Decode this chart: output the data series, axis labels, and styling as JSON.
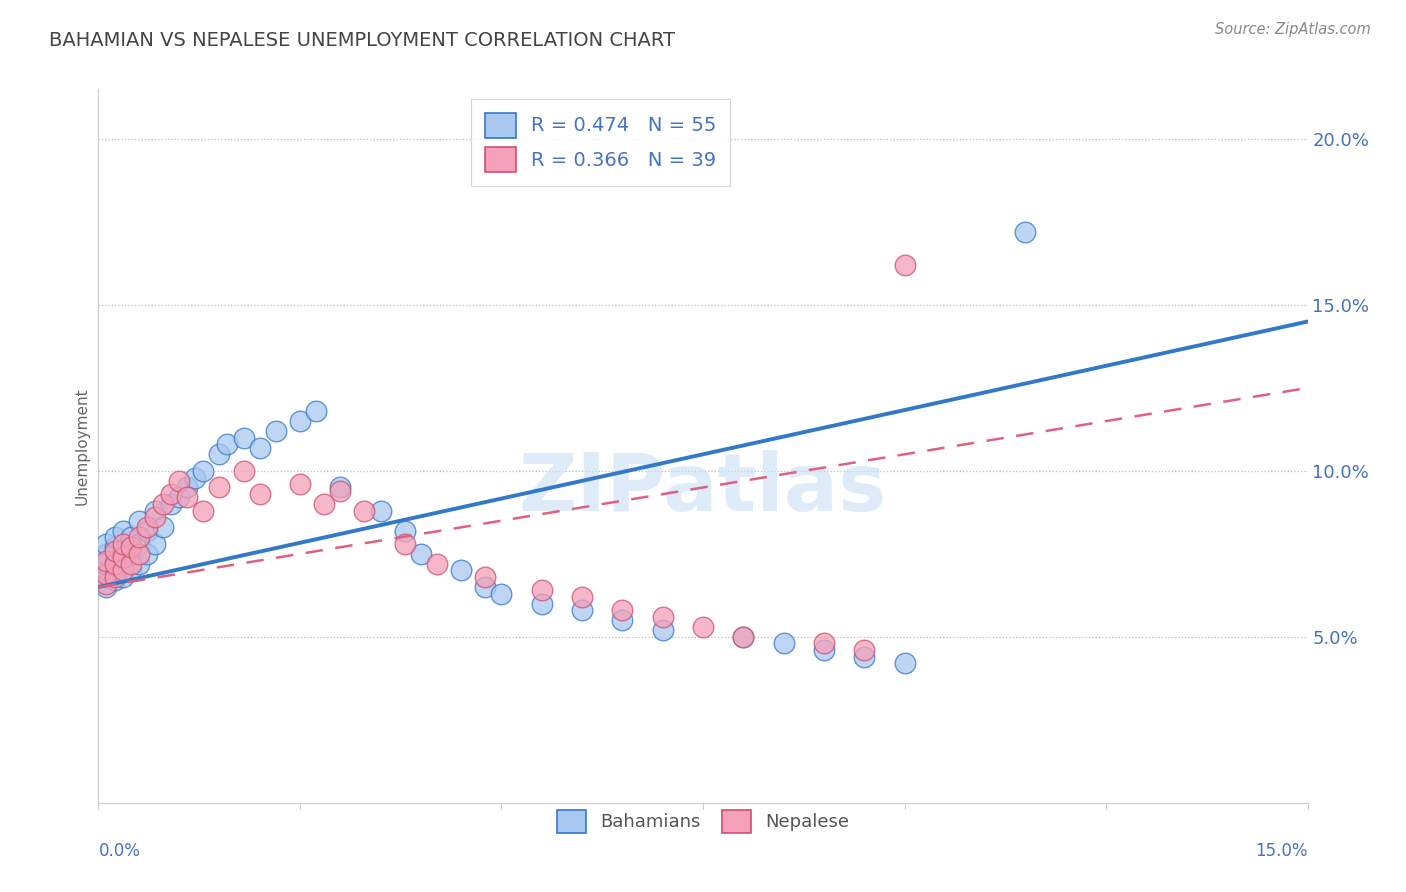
{
  "title": "BAHAMIAN VS NEPALESE UNEMPLOYMENT CORRELATION CHART",
  "source": "Source: ZipAtlas.com",
  "ylabel": "Unemployment",
  "r_bahamian": 0.474,
  "n_bahamian": 55,
  "r_nepalese": 0.366,
  "n_nepalese": 39,
  "bahamian_color": "#a8c8f0",
  "nepalese_color": "#f4a0b8",
  "line_bahamian_color": "#3478c8",
  "line_nepalese_color": "#e06080",
  "xlim": [
    0.0,
    0.15
  ],
  "ylim": [
    0.0,
    0.215
  ],
  "yticks": [
    0.05,
    0.1,
    0.15,
    0.2
  ],
  "ytick_labels": [
    "5.0%",
    "10.0%",
    "15.0%",
    "20.0%"
  ],
  "bahamian_x": [
    0.001,
    0.001,
    0.001,
    0.001,
    0.001,
    0.001,
    0.002,
    0.002,
    0.002,
    0.002,
    0.002,
    0.003,
    0.003,
    0.003,
    0.003,
    0.004,
    0.004,
    0.004,
    0.005,
    0.005,
    0.005,
    0.006,
    0.006,
    0.007,
    0.007,
    0.008,
    0.009,
    0.01,
    0.011,
    0.012,
    0.013,
    0.015,
    0.016,
    0.018,
    0.02,
    0.022,
    0.025,
    0.027,
    0.03,
    0.035,
    0.038,
    0.04,
    0.045,
    0.048,
    0.05,
    0.055,
    0.06,
    0.065,
    0.07,
    0.08,
    0.085,
    0.09,
    0.095,
    0.1,
    0.115
  ],
  "bahamian_y": [
    0.065,
    0.068,
    0.07,
    0.072,
    0.075,
    0.078,
    0.067,
    0.07,
    0.073,
    0.077,
    0.08,
    0.068,
    0.072,
    0.076,
    0.082,
    0.07,
    0.075,
    0.08,
    0.072,
    0.078,
    0.085,
    0.075,
    0.082,
    0.078,
    0.088,
    0.083,
    0.09,
    0.092,
    0.095,
    0.098,
    0.1,
    0.105,
    0.108,
    0.11,
    0.107,
    0.112,
    0.115,
    0.118,
    0.095,
    0.088,
    0.082,
    0.075,
    0.07,
    0.065,
    0.063,
    0.06,
    0.058,
    0.055,
    0.052,
    0.05,
    0.048,
    0.046,
    0.044,
    0.042,
    0.172
  ],
  "nepalese_x": [
    0.001,
    0.001,
    0.001,
    0.002,
    0.002,
    0.002,
    0.003,
    0.003,
    0.003,
    0.004,
    0.004,
    0.005,
    0.005,
    0.006,
    0.007,
    0.008,
    0.009,
    0.01,
    0.011,
    0.013,
    0.015,
    0.018,
    0.02,
    0.025,
    0.028,
    0.03,
    0.033,
    0.038,
    0.042,
    0.048,
    0.055,
    0.06,
    0.065,
    0.07,
    0.075,
    0.08,
    0.09,
    0.095,
    0.1
  ],
  "nepalese_y": [
    0.066,
    0.069,
    0.073,
    0.068,
    0.072,
    0.076,
    0.07,
    0.074,
    0.078,
    0.072,
    0.077,
    0.075,
    0.08,
    0.083,
    0.086,
    0.09,
    0.093,
    0.097,
    0.092,
    0.088,
    0.095,
    0.1,
    0.093,
    0.096,
    0.09,
    0.094,
    0.088,
    0.078,
    0.072,
    0.068,
    0.064,
    0.062,
    0.058,
    0.056,
    0.053,
    0.05,
    0.048,
    0.046,
    0.162
  ],
  "line_bah_start_x": 0.0,
  "line_bah_start_y": 0.065,
  "line_bah_end_x": 0.15,
  "line_bah_end_y": 0.145,
  "line_nep_start_x": 0.0,
  "line_nep_start_y": 0.065,
  "line_nep_end_x": 0.15,
  "line_nep_end_y": 0.125
}
